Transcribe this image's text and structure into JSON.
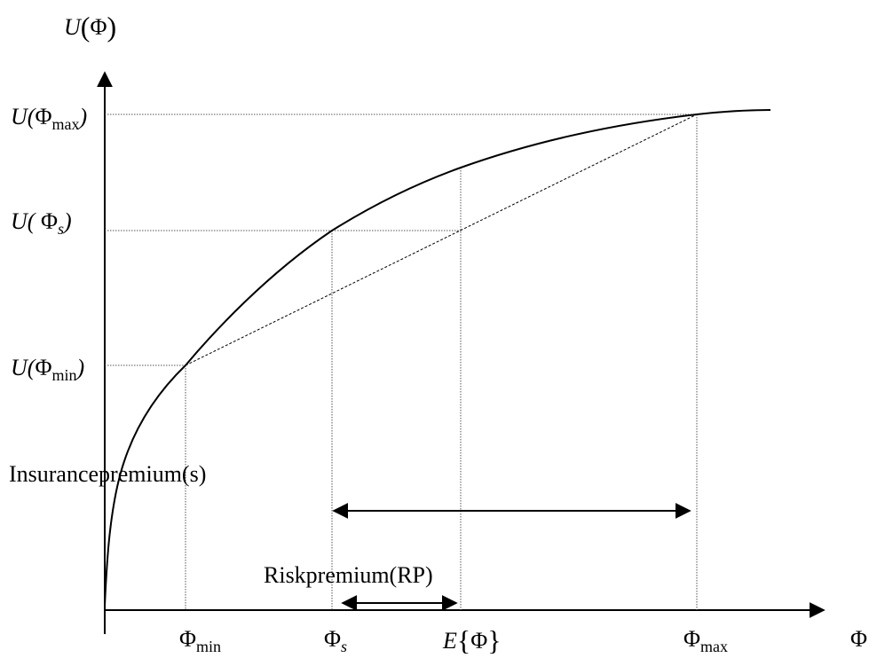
{
  "y_axis": {
    "func": "U",
    "var": "Φ"
  },
  "x_axis": {
    "var": "Φ"
  },
  "y_ticks": {
    "u_max": {
      "func": "U(",
      "phi": "Φ",
      "sub": "max",
      "close": ")"
    },
    "u_s": {
      "func": "U(",
      "phi": " Φ",
      "sub": "s",
      "close": ")"
    },
    "u_min": {
      "func": "U(",
      "phi": "Φ",
      "sub": "min",
      "close": ")"
    }
  },
  "x_ticks": {
    "phi_min": {
      "phi": "Φ",
      "sub": "min"
    },
    "phi_s": {
      "phi": "Φ",
      "sub": "s"
    },
    "e_phi": {
      "func": "E",
      "open": "{",
      "phi": "Φ",
      "close": "}"
    },
    "phi_max": {
      "phi": "Φ",
      "sub": "max"
    }
  },
  "annotations": {
    "insurance_premium": "Insurancepremium(s)",
    "risk_premium": "Riskpremium(RP)"
  },
  "colors": {
    "ink": "#000000",
    "guide": "#555555"
  }
}
